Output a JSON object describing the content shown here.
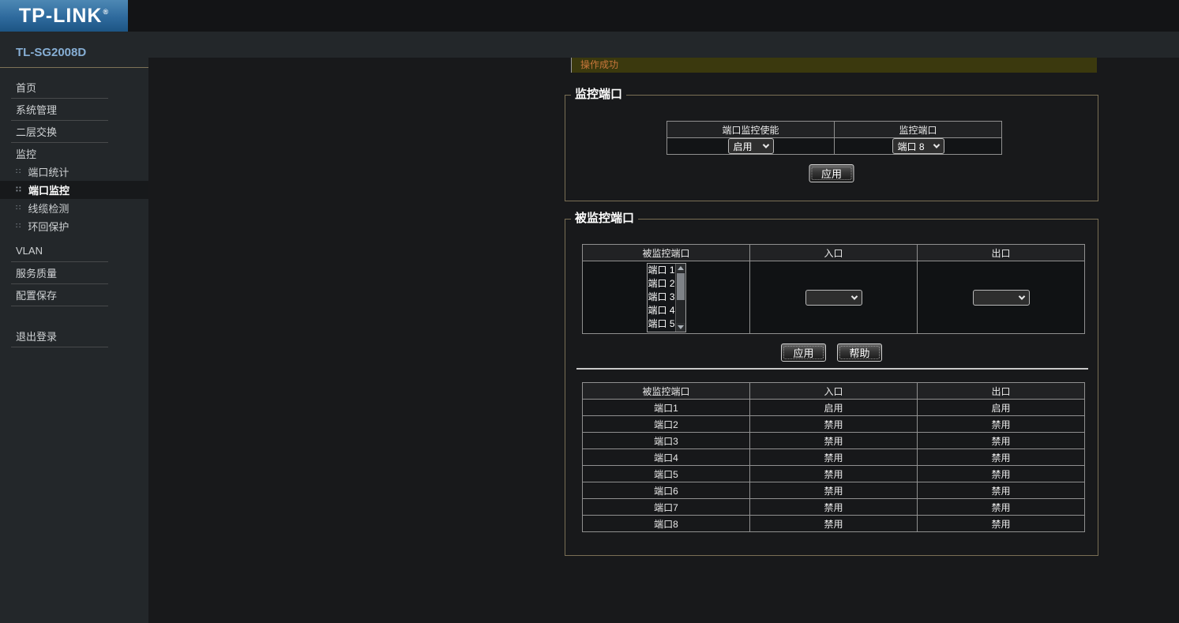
{
  "brand": {
    "logo_text": "TP-LINK",
    "registered_mark": "®"
  },
  "device": {
    "model": "TL-SG2008D"
  },
  "sidebar": {
    "items": [
      {
        "id": "home",
        "label": "首页",
        "type": "top",
        "divider": true
      },
      {
        "id": "system",
        "label": "系统管理",
        "type": "top",
        "divider": true
      },
      {
        "id": "l2-switch",
        "label": "二层交换",
        "type": "top",
        "divider": true
      },
      {
        "id": "monitor",
        "label": "监控",
        "type": "group",
        "divider": false
      },
      {
        "id": "port-stats",
        "label": "端口统计",
        "type": "sub",
        "divider": false
      },
      {
        "id": "port-mirror",
        "label": "端口监控",
        "type": "sub",
        "divider": false,
        "selected": true
      },
      {
        "id": "cable-test",
        "label": "线缆检测",
        "type": "sub",
        "divider": false
      },
      {
        "id": "loopback",
        "label": "环回保护",
        "type": "sub",
        "divider": false
      },
      {
        "id": "vlan",
        "label": "VLAN",
        "type": "top",
        "divider": true,
        "gap_before": "small"
      },
      {
        "id": "qos",
        "label": "服务质量",
        "type": "top",
        "divider": true
      },
      {
        "id": "config-save",
        "label": "配置保存",
        "type": "top",
        "divider": true
      },
      {
        "id": "logout",
        "label": "退出登录",
        "type": "top",
        "divider": true,
        "gap_before": "large"
      }
    ]
  },
  "message": {
    "text": "操作成功"
  },
  "mirror_section": {
    "title": "监控端口",
    "table": {
      "headers": [
        "端口监控使能",
        "监控端口"
      ],
      "enable_value": "启用",
      "port_value": "端口 8"
    },
    "apply_label": "应用"
  },
  "mirrored_section": {
    "title": "被监控端口",
    "config_table": {
      "headers": [
        "被监控端口",
        "入口",
        "出口"
      ],
      "port_list": [
        "端口 1",
        "端口 2",
        "端口 3",
        "端口 4",
        "端口 5"
      ],
      "ingress_value": "",
      "egress_value": ""
    },
    "apply_label": "应用",
    "help_label": "帮助",
    "status_table": {
      "headers": [
        "被监控端口",
        "入口",
        "出口"
      ],
      "rows": [
        [
          "端口1",
          "启用",
          "启用"
        ],
        [
          "端口2",
          "禁用",
          "禁用"
        ],
        [
          "端口3",
          "禁用",
          "禁用"
        ],
        [
          "端口4",
          "禁用",
          "禁用"
        ],
        [
          "端口5",
          "禁用",
          "禁用"
        ],
        [
          "端口6",
          "禁用",
          "禁用"
        ],
        [
          "端口7",
          "禁用",
          "禁用"
        ],
        [
          "端口8",
          "禁用",
          "禁用"
        ]
      ]
    }
  },
  "colors": {
    "brand_blue_top": "#4d88b4",
    "brand_blue_bottom": "#1d5584",
    "sidebar_bg": "#23272a",
    "content_bg": "#18191b",
    "message_bg": "#3b390e",
    "message_text": "#c9773b",
    "fieldset_border": "#7a6f55",
    "model_text": "#86aed4"
  }
}
